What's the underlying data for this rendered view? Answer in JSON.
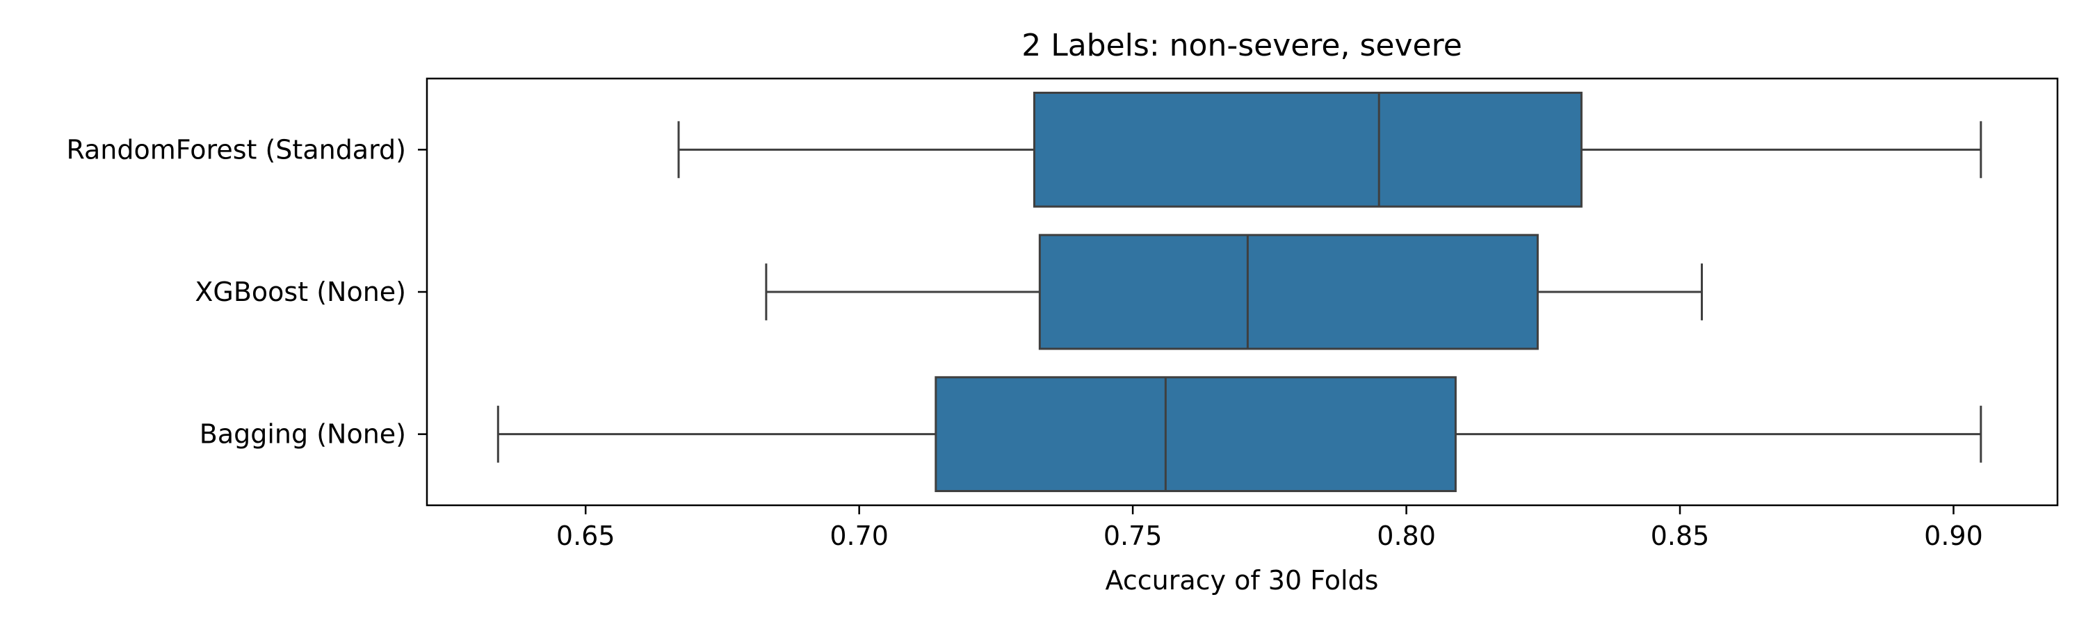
{
  "chart_data": {
    "type": "boxplot",
    "orientation": "horizontal",
    "title": "2 Labels: non-severe, severe",
    "xlabel": "Accuracy of 30 Folds",
    "ylabel": "",
    "xlim": [
      0.621,
      0.919
    ],
    "xticks": [
      {
        "value": 0.65,
        "label": "0.65"
      },
      {
        "value": 0.7,
        "label": "0.70"
      },
      {
        "value": 0.75,
        "label": "0.75"
      },
      {
        "value": 0.8,
        "label": "0.80"
      },
      {
        "value": 0.85,
        "label": "0.85"
      },
      {
        "value": 0.9,
        "label": "0.90"
      }
    ],
    "grid": false,
    "colors": {
      "box_fill": "#3274a1",
      "line": "#3f3f3f",
      "axes": "#000000"
    },
    "categories": [
      "RandomForest (Standard)",
      "XGBoost (None)",
      "Bagging (None)"
    ],
    "boxes": [
      {
        "category": "RandomForest (Standard)",
        "whisker_low": 0.667,
        "q1": 0.732,
        "median": 0.795,
        "q3": 0.832,
        "whisker_high": 0.905
      },
      {
        "category": "XGBoost (None)",
        "whisker_low": 0.683,
        "q1": 0.733,
        "median": 0.771,
        "q3": 0.824,
        "whisker_high": 0.854
      },
      {
        "category": "Bagging (None)",
        "whisker_low": 0.634,
        "q1": 0.714,
        "median": 0.756,
        "q3": 0.809,
        "whisker_high": 0.905
      }
    ]
  }
}
